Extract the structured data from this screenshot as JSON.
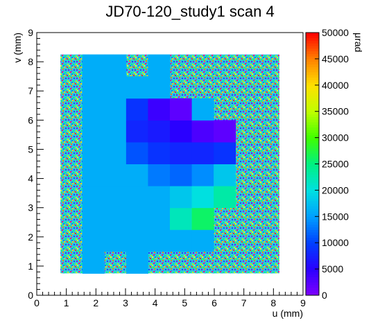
{
  "chart_data": {
    "type": "heatmap",
    "title": "JD70-120_study1 scan 4",
    "xlabel": "u (mm)",
    "ylabel": "v (mm)",
    "zlabel": "μrad",
    "xlim": [
      0,
      9
    ],
    "xticks": [
      0,
      1,
      2,
      3,
      4,
      5,
      6,
      7,
      8,
      9
    ],
    "ylim": [
      0,
      9
    ],
    "yticks": [
      0,
      1,
      2,
      3,
      4,
      5,
      6,
      7,
      8,
      9
    ],
    "zlim": [
      0,
      50000
    ],
    "zticks": [
      0,
      5000,
      10000,
      15000,
      20000,
      25000,
      30000,
      35000,
      40000,
      45000,
      50000
    ],
    "colorscale": [
      "#7f00ff",
      "#2a00ff",
      "#0040ff",
      "#00a0ff",
      "#00e0e0",
      "#00f080",
      "#40ff00",
      "#c0ff00",
      "#ffe000",
      "#ff8000",
      "#ff0000"
    ],
    "xbins": [
      0.8,
      1.54,
      2.28,
      3.02,
      3.76,
      4.5,
      5.24,
      5.98,
      6.72,
      7.46,
      8.2
    ],
    "ybins": [
      0.75,
      1.5,
      2.25,
      3.0,
      3.75,
      4.5,
      5.25,
      6.0,
      6.75,
      7.5,
      8.25
    ],
    "z": [
      [
        null,
        16000,
        null,
        16000,
        null,
        null,
        null,
        null,
        null,
        null
      ],
      [
        null,
        16000,
        16000,
        16000,
        16000,
        16000,
        16000,
        null,
        null,
        null
      ],
      [
        null,
        16000,
        16000,
        16000,
        16000,
        22000,
        26000,
        null,
        null,
        null
      ],
      [
        null,
        16000,
        16000,
        16000,
        16000,
        18000,
        20000,
        23000,
        null,
        null
      ],
      [
        null,
        16000,
        16000,
        16000,
        13000,
        12000,
        14000,
        18000,
        null,
        null
      ],
      [
        null,
        16000,
        16000,
        11000,
        9000,
        8000,
        8000,
        9000,
        null,
        null
      ],
      [
        null,
        16000,
        16000,
        8000,
        7000,
        5000,
        3000,
        2000,
        null,
        null
      ],
      [
        null,
        16000,
        16000,
        9000,
        4000,
        2000,
        16000,
        null,
        null,
        null
      ],
      [
        null,
        16000,
        16000,
        16000,
        16000,
        null,
        null,
        null,
        null,
        null
      ],
      [
        null,
        16000,
        16000,
        null,
        16000,
        null,
        null,
        null,
        null,
        null
      ]
    ]
  }
}
